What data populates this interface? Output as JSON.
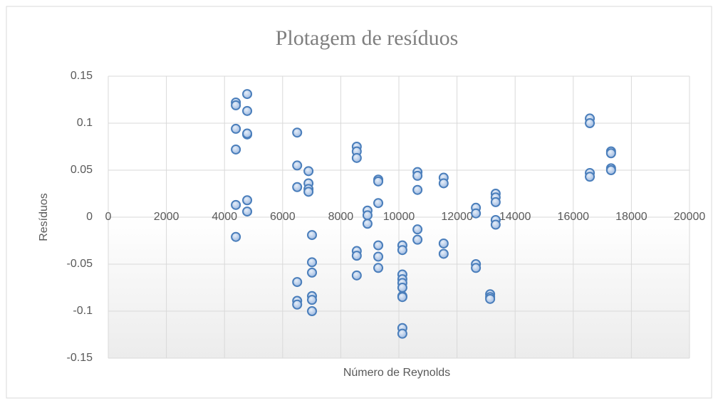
{
  "chart_data": {
    "type": "scatter",
    "title": "Plotagem de resíduos",
    "x_label": "Número de Reynolds",
    "y_label": "Resíduos",
    "color": "#4a7ebb",
    "grid": true,
    "xlim": [
      0,
      20000
    ],
    "xticks": [
      0,
      2000,
      4000,
      6000,
      8000,
      10000,
      12000,
      14000,
      16000,
      18000,
      20000
    ],
    "ylim": [
      -0.15,
      0.15
    ],
    "yticks": [
      -0.15,
      -0.1,
      -0.05,
      0,
      0.05,
      0.1,
      0.15
    ],
    "x": [
      4390,
      4390,
      4390,
      4390,
      4390,
      4390,
      4780,
      4780,
      4780,
      4780,
      4780,
      4780,
      6500,
      6500,
      6500,
      6500,
      6500,
      6500,
      6890,
      6890,
      6890,
      6890,
      7010,
      7010,
      7010,
      7010,
      7010,
      7010,
      8550,
      8550,
      8550,
      8550,
      8550,
      8550,
      8920,
      8920,
      8920,
      9290,
      9290,
      9290,
      9290,
      9290,
      9290,
      10120,
      10120,
      10120,
      10120,
      10120,
      10120,
      10120,
      10120,
      10120,
      10120,
      10640,
      10640,
      10640,
      10640,
      10640,
      11540,
      11540,
      11540,
      11540,
      12650,
      12650,
      12650,
      12650,
      13140,
      13140,
      13140,
      13330,
      13330,
      13330,
      13330,
      13330,
      16570,
      16570,
      16570,
      16570,
      17300,
      17300,
      17300,
      17300
    ],
    "y": [
      0.122,
      0.119,
      0.094,
      0.072,
      0.013,
      -0.021,
      0.131,
      0.113,
      0.088,
      0.089,
      0.018,
      0.006,
      0.09,
      0.055,
      0.032,
      -0.069,
      -0.089,
      -0.093,
      0.049,
      0.036,
      0.03,
      0.027,
      -0.019,
      -0.048,
      -0.059,
      -0.084,
      -0.088,
      -0.1,
      0.075,
      0.07,
      0.063,
      -0.036,
      -0.041,
      -0.062,
      0.007,
      0.002,
      -0.007,
      0.04,
      0.038,
      0.015,
      -0.03,
      -0.042,
      -0.054,
      -0.03,
      -0.035,
      -0.061,
      -0.066,
      -0.07,
      -0.075,
      -0.084,
      -0.085,
      -0.118,
      -0.124,
      0.048,
      0.044,
      0.029,
      -0.013,
      -0.024,
      0.042,
      0.036,
      -0.028,
      -0.039,
      0.01,
      0.004,
      -0.05,
      -0.054,
      -0.082,
      -0.085,
      -0.087,
      0.025,
      0.021,
      0.016,
      -0.003,
      -0.008,
      0.105,
      0.1,
      0.047,
      0.043,
      0.07,
      0.068,
      0.052,
      0.05
    ]
  }
}
